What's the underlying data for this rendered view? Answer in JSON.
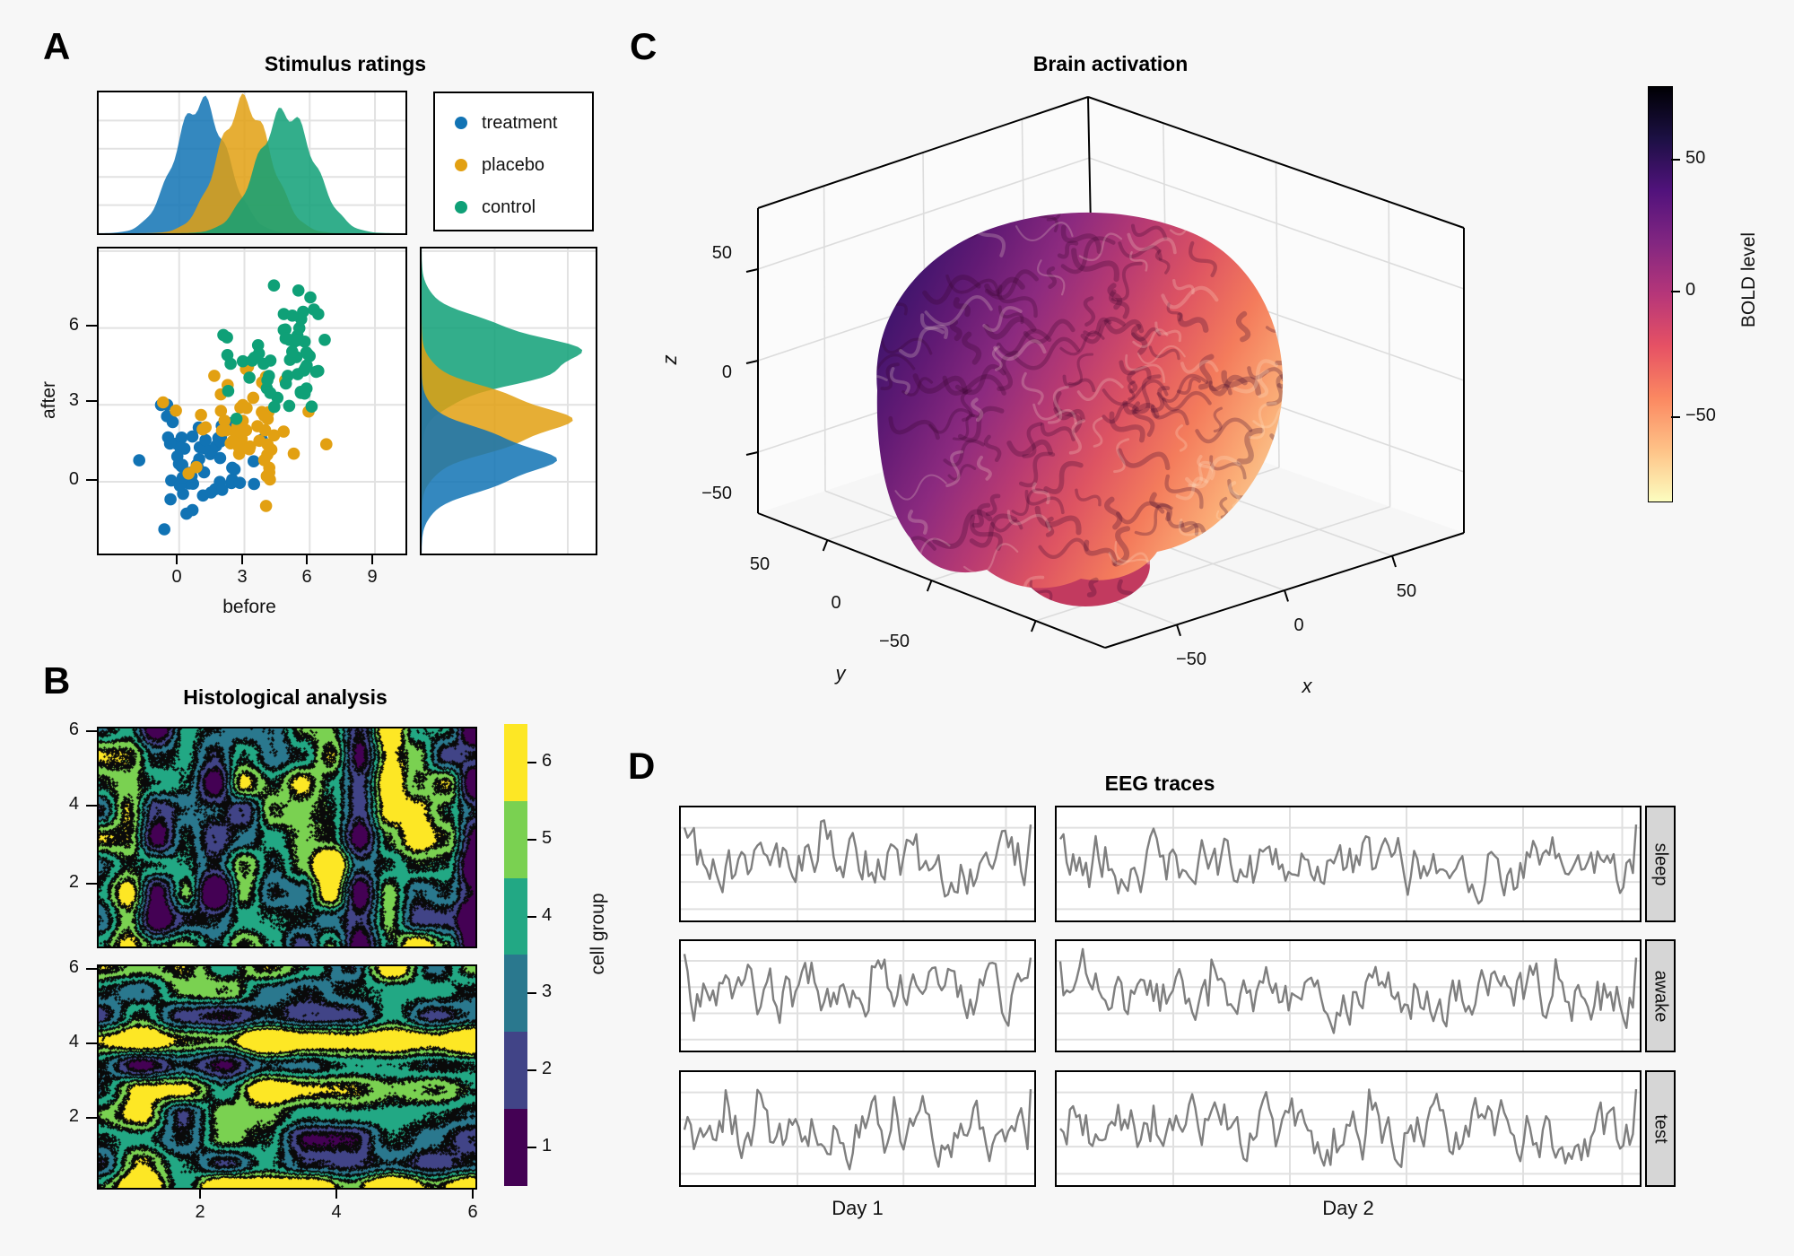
{
  "page": {
    "background": "#f7f7f7",
    "panel_bg": "#ffffff",
    "border_color": "#000000",
    "grid_color": "#e2e2e2",
    "strip_bg": "#d6d6d6"
  },
  "panel_labels": {
    "A": "A",
    "B": "B",
    "C": "C",
    "D": "D"
  },
  "chart_data": [
    {
      "id": "A",
      "type": "scatter",
      "title": "Stimulus ratings",
      "xlabel": "before",
      "ylabel": "after",
      "x_ticks": [
        "0",
        "3",
        "6",
        "9"
      ],
      "x_tick_values": [
        0,
        3,
        6,
        9
      ],
      "y_ticks": [
        "6",
        "3",
        "0"
      ],
      "y_tick_values": [
        6,
        3,
        0
      ],
      "x_range": [
        -3.7,
        10.4
      ],
      "y_range": [
        -2.8,
        9.1
      ],
      "legend_entries": [
        "treatment",
        "placebo",
        "control"
      ],
      "series": [
        {
          "name": "treatment",
          "color": "#1173b4",
          "n": 60,
          "mean": [
            1.0,
            0.85
          ],
          "sd": [
            1.2,
            0.95
          ],
          "seed": 11,
          "marginal_weight": 0.74
        },
        {
          "name": "placebo",
          "color": "#e2a012",
          "n": 60,
          "mean": [
            3.0,
            2.4
          ],
          "sd": [
            1.2,
            1.0
          ],
          "seed": 22,
          "marginal_weight": 0.87
        },
        {
          "name": "control",
          "color": "#0fa077",
          "n": 60,
          "mean": [
            4.9,
            4.9
          ],
          "sd": [
            1.3,
            1.05
          ],
          "seed": 33,
          "marginal_weight": 1.0
        }
      ],
      "marginals": {
        "top": "density of before per group",
        "right": "density of after per group"
      }
    },
    {
      "id": "B",
      "type": "filled-contour",
      "title": "Histological analysis",
      "x_ticks": [
        "2",
        "4",
        "6"
      ],
      "x_tick_values": [
        2,
        4,
        6
      ],
      "y_ticks": [
        "6",
        "4",
        "2"
      ],
      "y_tick_values": [
        6,
        4,
        2
      ],
      "x_range": [
        0.5,
        6.0
      ],
      "y_range": [
        0.5,
        6.0
      ],
      "levels": [
        1,
        2,
        3,
        4,
        5,
        6
      ],
      "palette": [
        "#440154",
        "#414487",
        "#2a788e",
        "#22a884",
        "#7ad151",
        "#fde725"
      ],
      "colorbar_label": "cell group",
      "colorbar_ticks": [
        "6",
        "5",
        "4",
        "3",
        "2",
        "1"
      ],
      "subpanels": [
        {
          "pattern": "column-banded noise field",
          "seed": 5,
          "col_weight": 0.62,
          "row_weight": 0.18,
          "noise_weight": 0.5,
          "nx": 13,
          "ny": 8
        },
        {
          "pattern": "row-banded noise field",
          "seed": 9,
          "col_weight": 0.16,
          "row_weight": 0.66,
          "noise_weight": 0.45,
          "nx": 9,
          "ny": 9
        }
      ]
    },
    {
      "id": "C",
      "type": "3d-surface",
      "title": "Brain activation",
      "xlabel": "x",
      "ylabel": "y",
      "zlabel": "z",
      "x_ticks": [
        "−50",
        "0",
        "50"
      ],
      "y_ticks": [
        "50",
        "0",
        "−50"
      ],
      "z_ticks": [
        "50",
        "0",
        "−50"
      ],
      "surface": "human brain cortex mesh, BOLD level low (light cream, frontal right) to high (dark purple, occipital left)",
      "surface_gradient": [
        "#38136b",
        "#611a74",
        "#8c2a7f",
        "#b83a72",
        "#de5462",
        "#f47c5c",
        "#fbaf78",
        "#f2e2b0"
      ],
      "colorbar": {
        "label": "BOLD level",
        "ticks": [
          "50",
          "0",
          "−50"
        ],
        "tick_values": [
          50,
          0,
          -50
        ],
        "gradient_top_to_bottom": [
          "#000004",
          "#1c1044",
          "#51127c",
          "#822681",
          "#b63679",
          "#e65164",
          "#fb8861",
          "#fec287",
          "#fcfdbf"
        ]
      }
    },
    {
      "id": "D",
      "type": "line-facets",
      "title": "EEG traces",
      "col_labels": [
        "Day 1",
        "Day 2"
      ],
      "row_labels": [
        "sleep",
        "awake",
        "test"
      ],
      "line_color": "#7f7f7f",
      "points_per_facet": [
        110,
        180
      ],
      "facet_seeds": [
        [
          41,
          42
        ],
        [
          43,
          44
        ],
        [
          45,
          46
        ]
      ]
    }
  ]
}
